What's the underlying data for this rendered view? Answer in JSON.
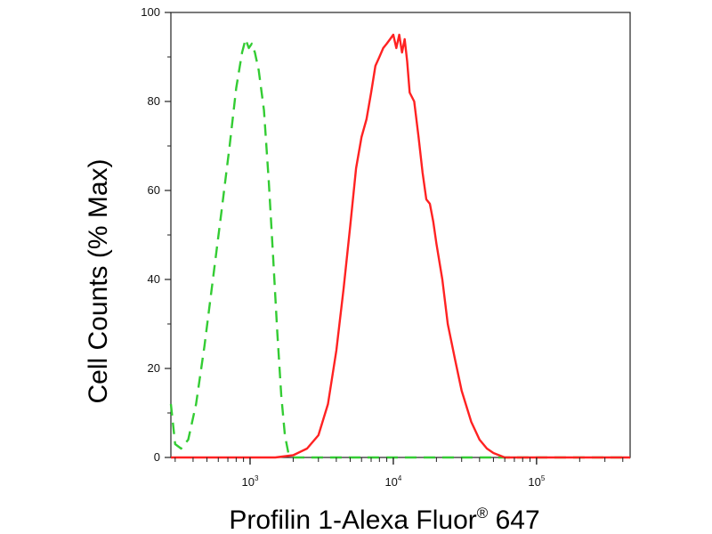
{
  "chart_data": {
    "type": "line",
    "title": "",
    "xlabel": "Profilin 1-Alexa Fluor",
    "xlabel_mark": "®",
    "xlabel_suffix": " 647",
    "ylabel": "Cell Counts (% Max)",
    "xscale": "log",
    "xlim": [
      280,
      450000
    ],
    "ylim": [
      0,
      100
    ],
    "y_ticks": [
      0,
      20,
      40,
      60,
      80,
      100
    ],
    "y_tick_labels": [
      "0",
      "20",
      "40",
      "60",
      "80",
      "100"
    ],
    "x_ticks": [
      1000,
      10000,
      100000
    ],
    "x_tick_labels": [
      {
        "base": "10",
        "exp": "3"
      },
      {
        "base": "10",
        "exp": "4"
      },
      {
        "base": "10",
        "exp": "5"
      }
    ],
    "grid": false,
    "legend": "none",
    "series": [
      {
        "color": "#33cc33",
        "style": "dashed",
        "points": [
          [
            280,
            12
          ],
          [
            300,
            3
          ],
          [
            330,
            2
          ],
          [
            370,
            4
          ],
          [
            420,
            12
          ],
          [
            480,
            25
          ],
          [
            550,
            40
          ],
          [
            630,
            55
          ],
          [
            720,
            70
          ],
          [
            800,
            83
          ],
          [
            880,
            91
          ],
          [
            930,
            94
          ],
          [
            980,
            92
          ],
          [
            1030,
            93
          ],
          [
            1080,
            91
          ],
          [
            1150,
            87
          ],
          [
            1250,
            78
          ],
          [
            1350,
            62
          ],
          [
            1450,
            45
          ],
          [
            1550,
            28
          ],
          [
            1650,
            14
          ],
          [
            1750,
            5
          ],
          [
            1850,
            1
          ],
          [
            1950,
            0
          ],
          [
            450000,
            0
          ]
        ]
      },
      {
        "color": "#ff2222",
        "style": "solid",
        "points": [
          [
            280,
            0
          ],
          [
            1500,
            0
          ],
          [
            2000,
            0.5
          ],
          [
            2500,
            2
          ],
          [
            3000,
            5
          ],
          [
            3500,
            12
          ],
          [
            4000,
            24
          ],
          [
            4500,
            38
          ],
          [
            5000,
            52
          ],
          [
            5500,
            65
          ],
          [
            6000,
            72
          ],
          [
            6500,
            76
          ],
          [
            7000,
            82
          ],
          [
            7500,
            88
          ],
          [
            8000,
            90
          ],
          [
            8500,
            92
          ],
          [
            9000,
            93
          ],
          [
            9500,
            94
          ],
          [
            10000,
            95
          ],
          [
            10500,
            92
          ],
          [
            11000,
            95
          ],
          [
            11500,
            91
          ],
          [
            12000,
            94
          ],
          [
            12500,
            89
          ],
          [
            13000,
            82
          ],
          [
            14000,
            80
          ],
          [
            15000,
            72
          ],
          [
            16000,
            64
          ],
          [
            17000,
            58
          ],
          [
            18000,
            57
          ],
          [
            19000,
            53
          ],
          [
            20000,
            48
          ],
          [
            22000,
            40
          ],
          [
            24000,
            30
          ],
          [
            27000,
            22
          ],
          [
            30000,
            15
          ],
          [
            35000,
            8
          ],
          [
            40000,
            4
          ],
          [
            45000,
            2
          ],
          [
            50000,
            1
          ],
          [
            60000,
            0
          ],
          [
            450000,
            0
          ]
        ]
      }
    ]
  }
}
